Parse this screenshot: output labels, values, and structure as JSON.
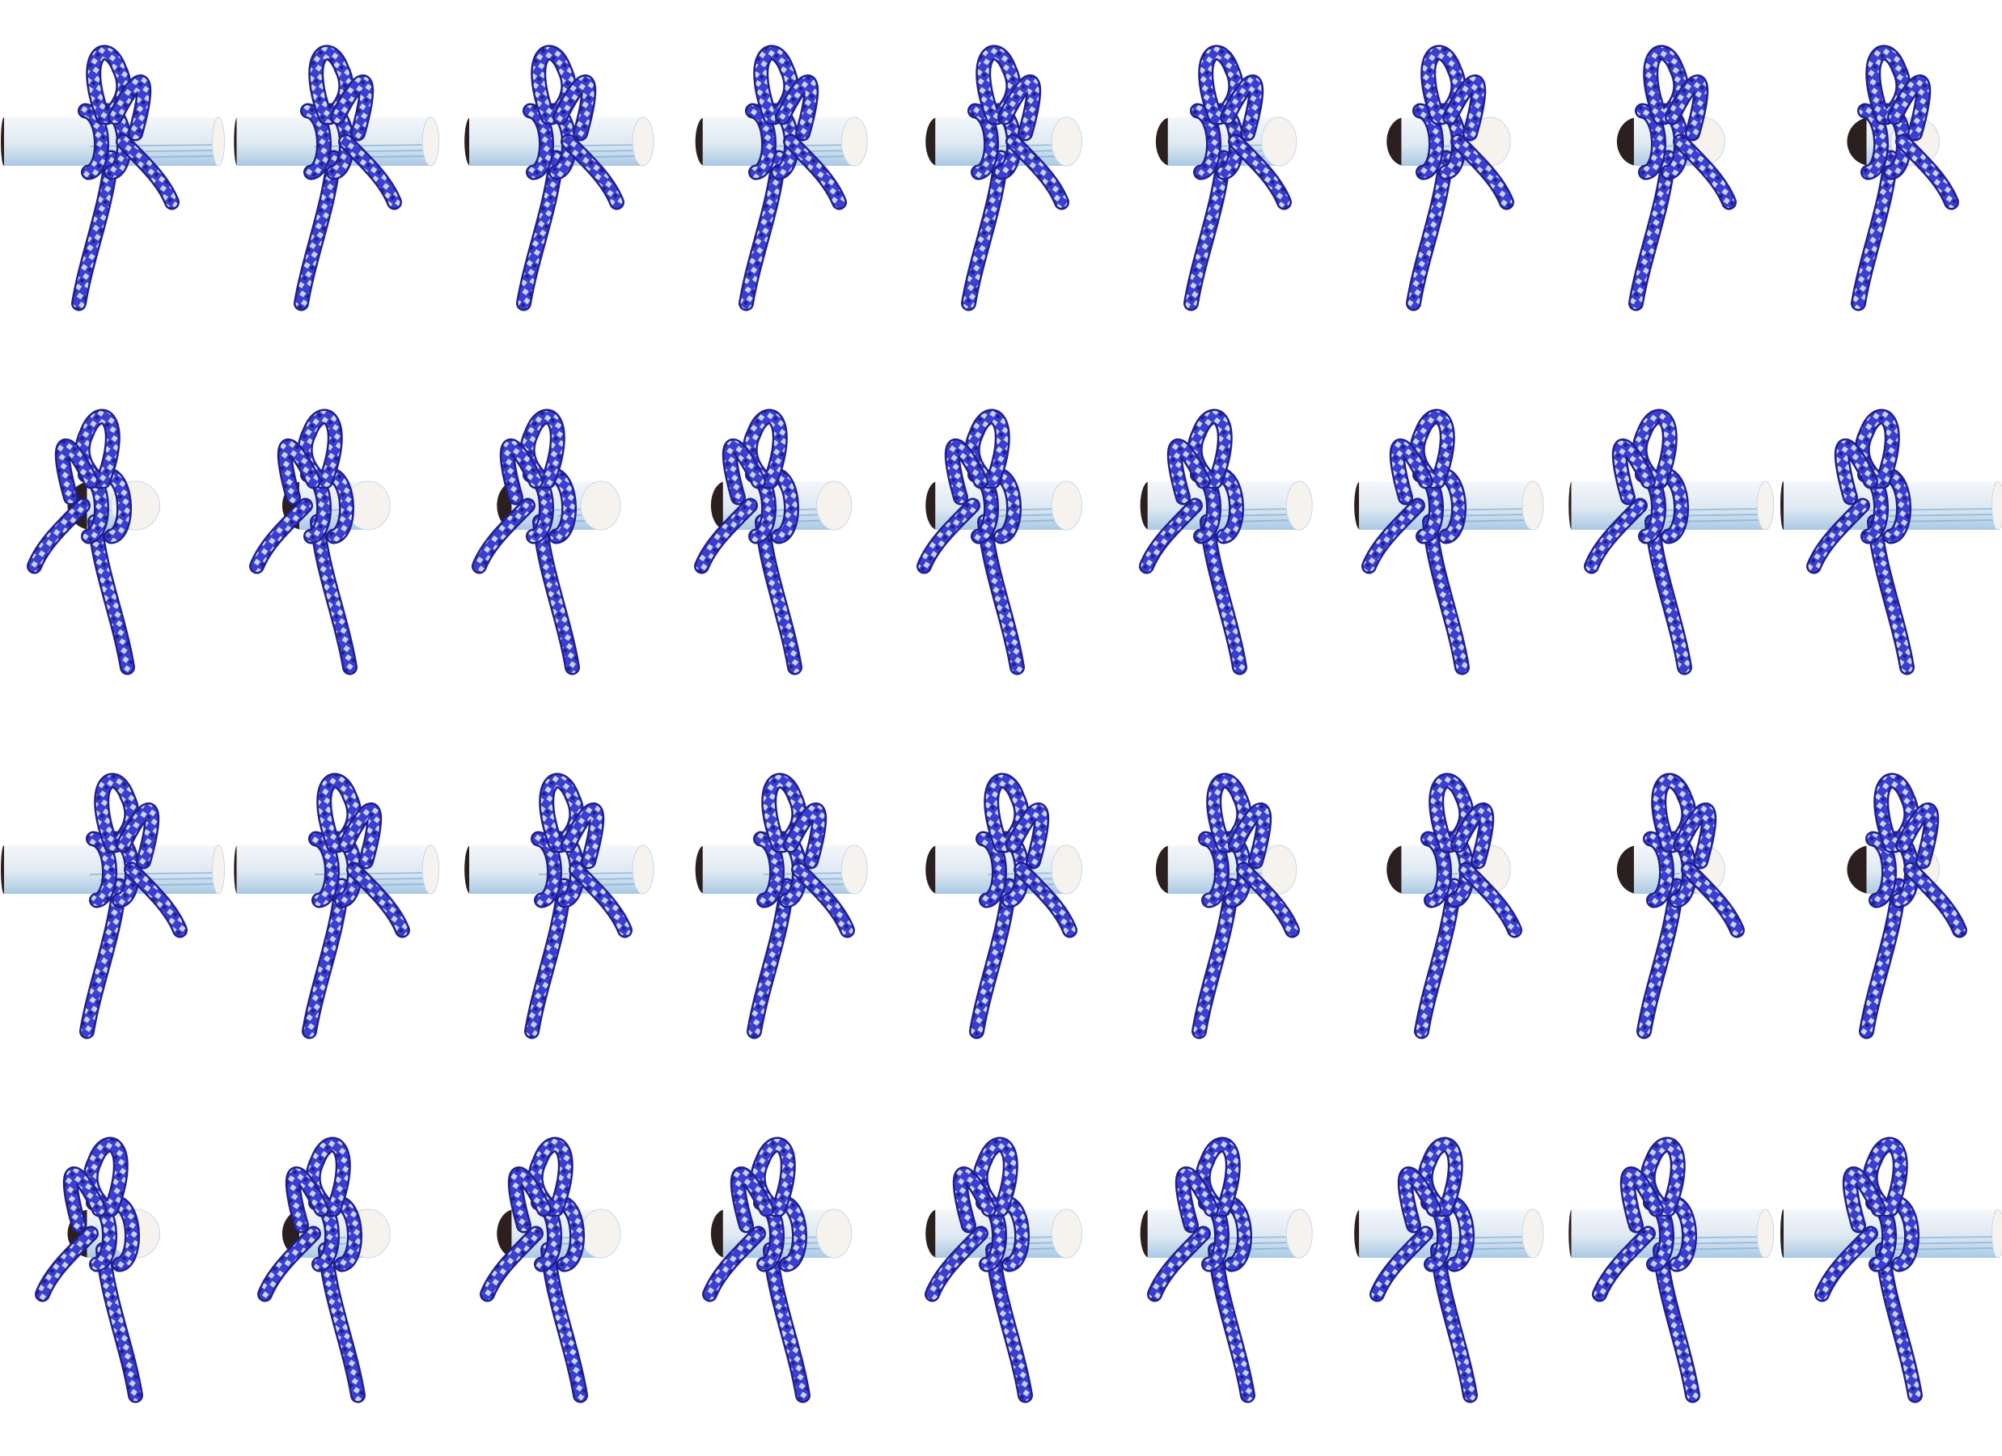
{
  "sheet": {
    "rows": 4,
    "columns": 9,
    "background_color": "#ffffff",
    "rope_color": "#3b3ed0",
    "rope_dark_color": "#1f1f8c",
    "rope_fleck_color": "#c9d6f2",
    "pole_light_color": "#f4f7fa",
    "pole_color": "#dfe9f2",
    "pole_streak_color": "#6fa5d3",
    "pole_end_color": "#f6f3ef",
    "pole_shadow_color": "#2b1f1f"
  },
  "frames": [
    {
      "row": 1,
      "col": 1,
      "view_angle": 0
    },
    {
      "row": 1,
      "col": 2,
      "view_angle": 11
    },
    {
      "row": 1,
      "col": 3,
      "view_angle": 22
    },
    {
      "row": 1,
      "col": 4,
      "view_angle": 34
    },
    {
      "row": 1,
      "col": 5,
      "view_angle": 45
    },
    {
      "row": 1,
      "col": 6,
      "view_angle": 56
    },
    {
      "row": 1,
      "col": 7,
      "view_angle": 68
    },
    {
      "row": 1,
      "col": 8,
      "view_angle": 79
    },
    {
      "row": 1,
      "col": 9,
      "view_angle": 90
    },
    {
      "row": 2,
      "col": 1,
      "view_angle": 90
    },
    {
      "row": 2,
      "col": 2,
      "view_angle": 79
    },
    {
      "row": 2,
      "col": 3,
      "view_angle": 68
    },
    {
      "row": 2,
      "col": 4,
      "view_angle": 56
    },
    {
      "row": 2,
      "col": 5,
      "view_angle": 45
    },
    {
      "row": 2,
      "col": 6,
      "view_angle": 34
    },
    {
      "row": 2,
      "col": 7,
      "view_angle": 22
    },
    {
      "row": 2,
      "col": 8,
      "view_angle": 11
    },
    {
      "row": 2,
      "col": 9,
      "view_angle": 0
    },
    {
      "row": 3,
      "col": 1,
      "view_angle": 0
    },
    {
      "row": 3,
      "col": 2,
      "view_angle": 11
    },
    {
      "row": 3,
      "col": 3,
      "view_angle": 22
    },
    {
      "row": 3,
      "col": 4,
      "view_angle": 34
    },
    {
      "row": 3,
      "col": 5,
      "view_angle": 45
    },
    {
      "row": 3,
      "col": 6,
      "view_angle": 56
    },
    {
      "row": 3,
      "col": 7,
      "view_angle": 68
    },
    {
      "row": 3,
      "col": 8,
      "view_angle": 79
    },
    {
      "row": 3,
      "col": 9,
      "view_angle": 90
    },
    {
      "row": 4,
      "col": 1,
      "view_angle": 90
    },
    {
      "row": 4,
      "col": 2,
      "view_angle": 79
    },
    {
      "row": 4,
      "col": 3,
      "view_angle": 68
    },
    {
      "row": 4,
      "col": 4,
      "view_angle": 56
    },
    {
      "row": 4,
      "col": 5,
      "view_angle": 45
    },
    {
      "row": 4,
      "col": 6,
      "view_angle": 34
    },
    {
      "row": 4,
      "col": 7,
      "view_angle": 22
    },
    {
      "row": 4,
      "col": 8,
      "view_angle": 11
    },
    {
      "row": 4,
      "col": 9,
      "view_angle": 0
    }
  ]
}
